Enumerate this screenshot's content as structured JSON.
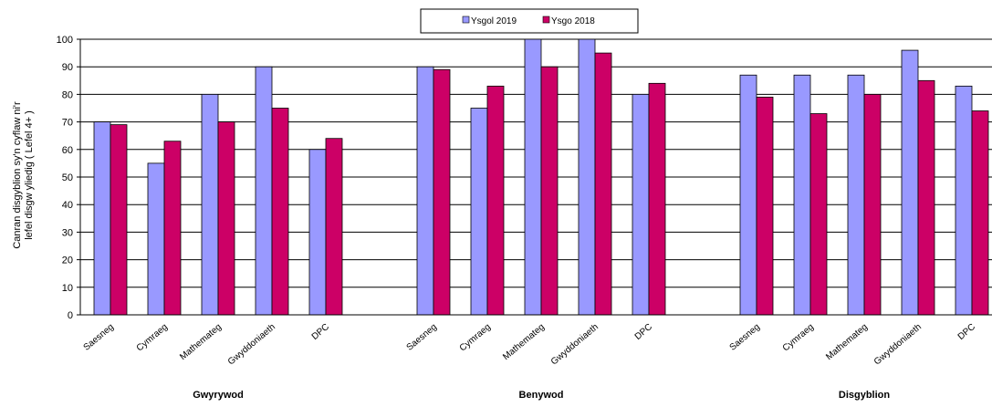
{
  "chart_data": {
    "type": "bar",
    "ylabel_line1": "Canran disgyblion sy'n cyflaw ni'r",
    "ylabel_line2": "lefel disgw yliedig  ( Lefel 4+ )",
    "ylim": [
      0,
      100
    ],
    "yticks": [
      "0",
      "10",
      "20",
      "30",
      "40",
      "50",
      "60",
      "70",
      "80",
      "90",
      "100"
    ],
    "grid": true,
    "legend_position": "top-center",
    "colors": {
      "Ysgol 2019": "#9999ff",
      "Ysgo 2018": "#cc0066"
    },
    "series": [
      {
        "name": "Ysgol 2019"
      },
      {
        "name": "Ysgo 2018"
      }
    ],
    "groups": [
      {
        "label": "Gwyrywod",
        "categories": [
          "Saesneg",
          "Cymraeg",
          "Mathemateg",
          "Gwyddoniaeth",
          "DPC"
        ],
        "Ysgol 2019": [
          70,
          55,
          80,
          90,
          60
        ],
        "Ysgo 2018": [
          69,
          63,
          70,
          75,
          64
        ]
      },
      {
        "label": "Benywod",
        "categories": [
          "Saesneg",
          "Cymraeg",
          "Mathemateg",
          "Gwyddoniaeth",
          "DPC"
        ],
        "Ysgol 2019": [
          90,
          75,
          100,
          100,
          80
        ],
        "Ysgo 2018": [
          89,
          83,
          90,
          95,
          84
        ]
      },
      {
        "label": "Disgyblion",
        "categories": [
          "Saesneg",
          "Cymraeg",
          "Mathemateg",
          "Gwyddoniaeth",
          "DPC"
        ],
        "Ysgol 2019": [
          87,
          87,
          87,
          96,
          83
        ],
        "Ysgo 2018": [
          79,
          73,
          80,
          85,
          74
        ]
      }
    ]
  }
}
